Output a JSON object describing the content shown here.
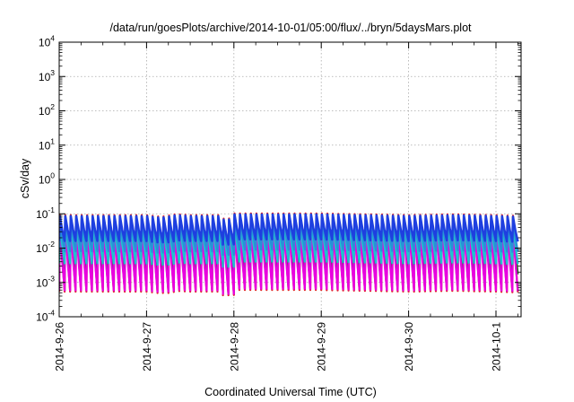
{
  "chart_data": {
    "type": "line",
    "title": "/data/run/goesPlots/archive/2014-10-01/05:00/flux/../bryn/5daysMars.plot",
    "xlabel": "Coordinated Universal Time (UTC)",
    "ylabel": "cSv/day",
    "y_scale": "log",
    "ylim": [
      0.0001,
      10000
    ],
    "xlim": [
      "2014-09-26 00:00",
      "2014-10-01 06:00"
    ],
    "grid": true,
    "y_ticks": [
      {
        "base": "10",
        "exp": "-4"
      },
      {
        "base": "10",
        "exp": "-3"
      },
      {
        "base": "10",
        "exp": "-2"
      },
      {
        "base": "10",
        "exp": "-1"
      },
      {
        "base": "10",
        "exp": "0"
      },
      {
        "base": "10",
        "exp": "1"
      },
      {
        "base": "10",
        "exp": "2"
      },
      {
        "base": "10",
        "exp": "3"
      },
      {
        "base": "10",
        "exp": "4"
      }
    ],
    "x_ticks": [
      "2014-9-26",
      "2014-9-27",
      "2014-9-28",
      "2014-9-29",
      "2014-9-30",
      "2014-10-1"
    ],
    "cycle_hours": 1.5,
    "num_cycles": 84,
    "cycle_peak_env": [
      [
        0,
        0.09
      ],
      [
        24,
        0.09
      ],
      [
        28,
        0.08
      ],
      [
        32,
        0.095
      ],
      [
        36,
        0.09
      ],
      [
        44,
        0.09
      ],
      [
        46,
        0.06
      ],
      [
        48,
        0.1
      ],
      [
        60,
        0.1
      ],
      [
        72,
        0.1
      ],
      [
        84,
        0.095
      ],
      [
        96,
        0.09
      ],
      [
        108,
        0.095
      ],
      [
        120,
        0.09
      ],
      [
        126,
        0.085
      ]
    ],
    "series": [
      {
        "color": "#e11b22",
        "peak_factor": 1.02,
        "min_factor": 0.006
      },
      {
        "color": "#2a6a2a",
        "peak_factor": 0.95,
        "min_factor": 0.02
      },
      {
        "color": "#1fc2cf",
        "peak_factor": 0.62,
        "min_factor": 0.04
      },
      {
        "color": "#2a8fd8",
        "peak_factor": 0.82,
        "min_factor": 0.09
      },
      {
        "color": "#1e3fe0",
        "peak_factor": 0.95,
        "min_factor": 0.18
      },
      {
        "color": "#e800e0",
        "peak_factor": 0.5,
        "min_factor": 0.0065
      }
    ]
  }
}
